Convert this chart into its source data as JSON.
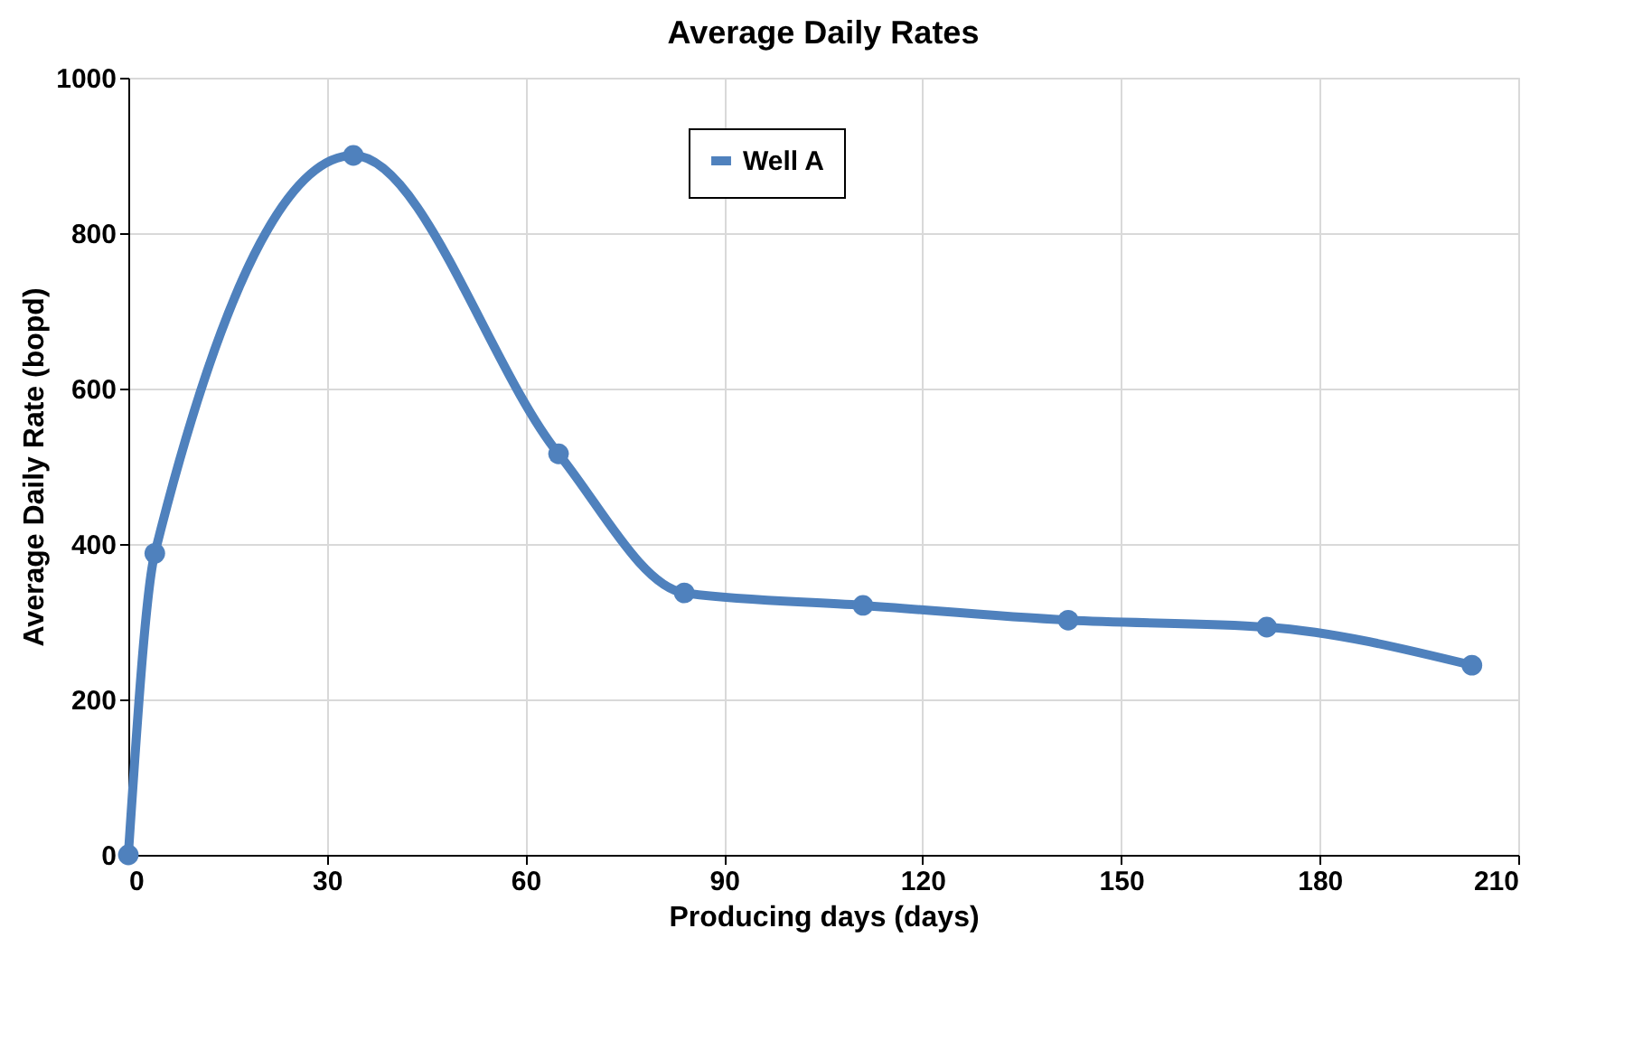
{
  "chart_data": {
    "type": "line",
    "title": "Average Daily Rates",
    "xlabel": "Producing days (days)",
    "ylabel": "Average Daily Rate (bopd)",
    "x": [
      0,
      4,
      34,
      65,
      84,
      111,
      142,
      172,
      203
    ],
    "series": [
      {
        "name": "Well A",
        "color": "#4f81bd",
        "values": [
          0,
          388,
          900,
          516,
          337,
          321,
          302,
          293,
          244
        ]
      }
    ],
    "xlim": [
      0,
      210
    ],
    "xticks": [
      0,
      30,
      60,
      90,
      120,
      150,
      180,
      210
    ],
    "ylim": [
      0,
      1000
    ],
    "yticks": [
      0,
      200,
      400,
      600,
      800,
      1000
    ],
    "grid": true,
    "legend": "top",
    "marker": "circle",
    "line_style": "solid"
  }
}
